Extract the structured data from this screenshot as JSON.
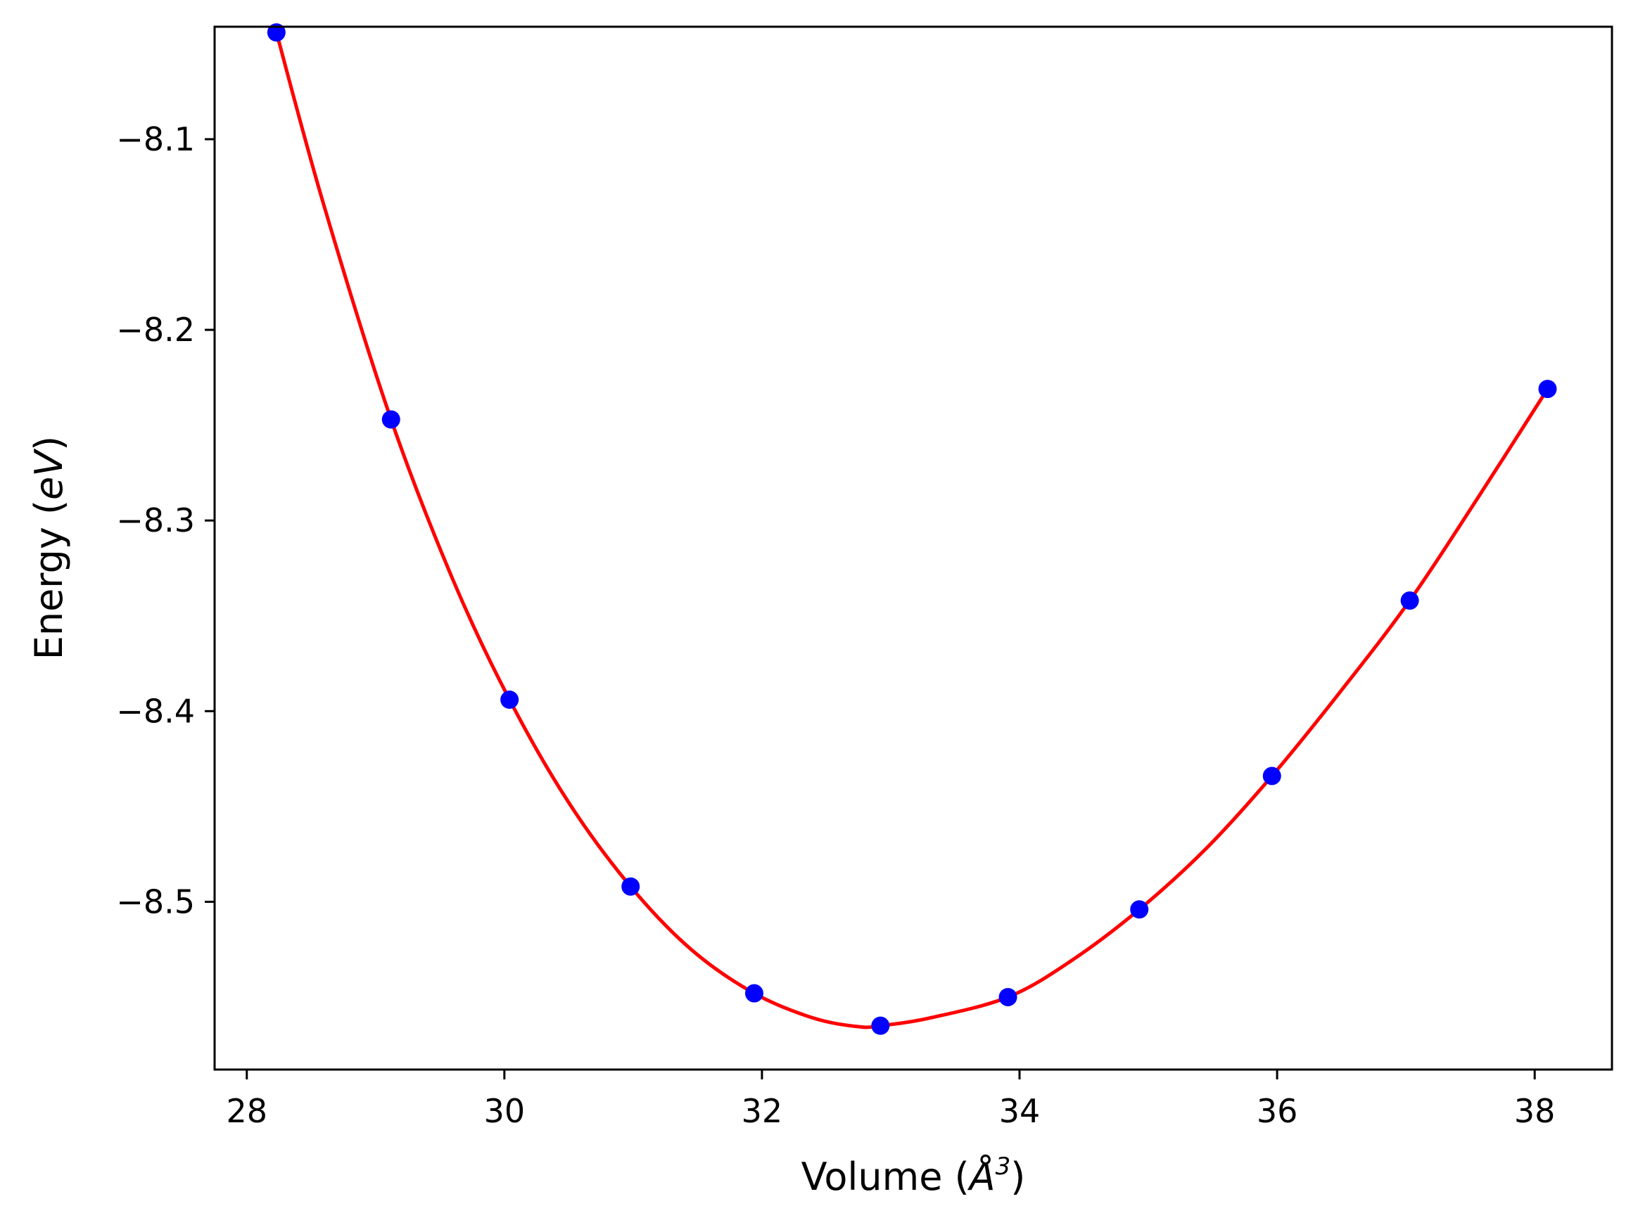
{
  "chart_data": {
    "type": "scatter",
    "title": "",
    "xlabel": "Volume (",
    "xlabel_symbol": "Å",
    "xlabel_exponent": "3",
    "xlabel_suffix": ")",
    "ylabel": "Energy (",
    "ylabel_unit": "eV",
    "ylabel_suffix": ")",
    "xlim": [
      27.75,
      38.6
    ],
    "ylim": [
      -8.588,
      -8.041
    ],
    "xticks": [
      28,
      30,
      32,
      34,
      36,
      38
    ],
    "xtick_labels": [
      "28",
      "30",
      "32",
      "34",
      "36",
      "38"
    ],
    "yticks": [
      -8.1,
      -8.2,
      -8.3,
      -8.4,
      -8.5
    ],
    "ytick_labels": [
      "−8.1",
      "−8.2",
      "−8.3",
      "−8.4",
      "−8.5"
    ],
    "grid": false,
    "series": [
      {
        "kind": "points",
        "color": "#0000ff",
        "x": [
          28.23,
          29.12,
          30.04,
          30.98,
          31.94,
          32.92,
          33.91,
          34.93,
          35.96,
          37.03,
          38.1
        ],
        "y": [
          -8.044,
          -8.247,
          -8.394,
          -8.492,
          -8.548,
          -8.565,
          -8.55,
          -8.504,
          -8.434,
          -8.342,
          -8.231
        ]
      },
      {
        "kind": "fit-curve",
        "color": "#ff0000",
        "x": [
          28.23,
          28.6,
          29.12,
          29.6,
          30.04,
          30.5,
          30.98,
          31.45,
          31.94,
          32.4,
          32.75,
          32.92,
          33.3,
          33.91,
          34.4,
          34.93,
          35.45,
          35.96,
          36.5,
          37.03,
          37.55,
          38.1
        ],
        "y": [
          -8.044,
          -8.135,
          -8.247,
          -8.331,
          -8.394,
          -8.448,
          -8.492,
          -8.525,
          -8.548,
          -8.561,
          -8.5655,
          -8.565,
          -8.561,
          -8.55,
          -8.531,
          -8.504,
          -8.472,
          -8.434,
          -8.389,
          -8.342,
          -8.289,
          -8.231
        ]
      }
    ]
  }
}
